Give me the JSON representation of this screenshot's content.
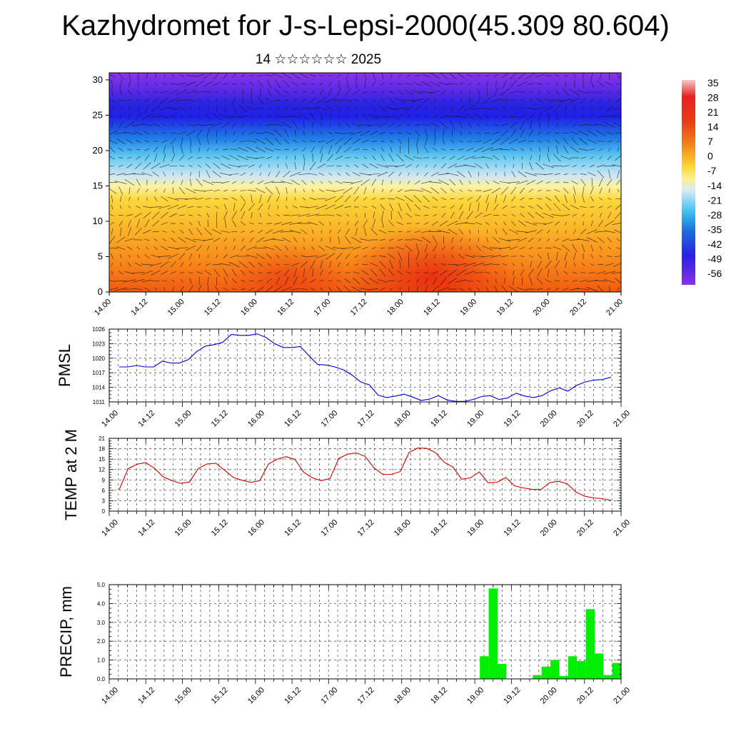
{
  "title": "Kazhydromet for J-s-Lepsi-2000(45.309 80.604)",
  "subtitle": "14 ☆☆☆☆☆☆ 2025",
  "time_ticks": [
    "14.00",
    "14.12",
    "15.00",
    "15.12",
    "16.00",
    "16.12",
    "17.00",
    "17.12",
    "18.00",
    "18.12",
    "19.00",
    "19.12",
    "20.00",
    "20.12",
    "21.00"
  ],
  "chart_data": [
    {
      "type": "heatmap",
      "panel": "cross-section",
      "x_ticks": [
        "14.00",
        "14.12",
        "15.00",
        "15.12",
        "16.00",
        "16.12",
        "17.00",
        "17.12",
        "18.00",
        "18.12",
        "19.00",
        "19.12",
        "20.00",
        "20.12",
        "21.00"
      ],
      "y_ticks": [
        0,
        5,
        10,
        15,
        20,
        25,
        30
      ],
      "ylim": [
        0,
        31
      ],
      "overlay": "wind vectors",
      "colorbar": {
        "labels": [
          "35",
          "28",
          "21",
          "14",
          "7",
          "0",
          "-7",
          "-14",
          "-21",
          "-28",
          "-35",
          "-42",
          "-49",
          "-56"
        ],
        "colors": [
          "#f6c2c2",
          "#e8201e",
          "#f05a18",
          "#f9a81e",
          "#fbd632",
          "#fdf08c",
          "#d5e7f3",
          "#3ec3f0",
          "#1a6bdf",
          "#2e1ee6",
          "#7a2ee8"
        ]
      }
    },
    {
      "type": "line",
      "ylabel": "PMSL",
      "ylim": [
        1011,
        1026
      ],
      "y_ticks": [
        1011,
        1014,
        1017,
        1020,
        1023,
        1026
      ],
      "color": "#0000cc",
      "values": [
        1018.2,
        1018.2,
        1018.5,
        1018.2,
        1018.2,
        1019.4,
        1019.0,
        1019.0,
        1019.7,
        1021.4,
        1022.5,
        1022.8,
        1023.3,
        1024.9,
        1024.7,
        1024.7,
        1025.0,
        1024.3,
        1023.0,
        1022.2,
        1022.2,
        1022.4,
        1020.5,
        1018.7,
        1018.6,
        1018.2,
        1017.6,
        1016.5,
        1015.1,
        1014.5,
        1012.4,
        1011.9,
        1012.2,
        1012.6,
        1012.0,
        1011.3,
        1011.6,
        1012.3,
        1011.4,
        1011.1,
        1011.1,
        1011.5,
        1012.1,
        1012.3,
        1011.5,
        1011.8,
        1012.8,
        1012.2,
        1011.9,
        1012.3,
        1013.3,
        1013.9,
        1013.2,
        1014.4,
        1015.1,
        1015.5,
        1015.6,
        1016.1
      ]
    },
    {
      "type": "line",
      "ylabel": "TEMP at 2 M",
      "ylim": [
        0,
        21
      ],
      "y_ticks": [
        0,
        3,
        6,
        9,
        12,
        15,
        18,
        21
      ],
      "color": "#cc0000",
      "values": [
        6.2,
        12.2,
        13.5,
        14.0,
        12.4,
        9.9,
        8.8,
        8.0,
        8.4,
        12.3,
        13.6,
        13.8,
        11.8,
        9.7,
        8.9,
        8.3,
        8.8,
        13.6,
        15.0,
        15.7,
        14.9,
        11.2,
        9.6,
        8.8,
        9.4,
        15.2,
        16.4,
        16.8,
        15.8,
        12.5,
        10.6,
        10.6,
        11.4,
        16.9,
        18.2,
        18.1,
        16.9,
        14.1,
        12.7,
        9.2,
        9.6,
        11.3,
        8.2,
        8.3,
        9.7,
        7.3,
        6.7,
        6.3,
        6.2,
        8.2,
        8.6,
        7.9,
        5.5,
        4.3,
        3.8,
        3.6,
        3.1
      ]
    },
    {
      "type": "bar",
      "ylabel": "PRECIP, mm",
      "ylim": [
        0,
        5.0
      ],
      "y_ticks": [
        "0.0",
        "1.0",
        "2.0",
        "3.0",
        "4.0",
        "5.0"
      ],
      "color": "#00ee00",
      "values": [
        0,
        0,
        0,
        0,
        0,
        0,
        0,
        0,
        0,
        0,
        0,
        0,
        0,
        0,
        0,
        0,
        0,
        0,
        0,
        0,
        0,
        0,
        0,
        0,
        0,
        0,
        0,
        0,
        0,
        0,
        0,
        0,
        0,
        0,
        0,
        0,
        0,
        0,
        0,
        0,
        0,
        0,
        1.2,
        4.8,
        0.8,
        0,
        0,
        0,
        0.2,
        0.65,
        1.0,
        0.15,
        1.2,
        0.95,
        3.7,
        1.35,
        0.2,
        0.85
      ]
    }
  ]
}
